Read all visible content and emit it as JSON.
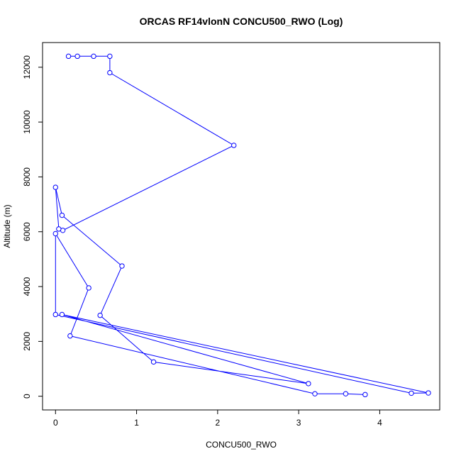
{
  "chart_data": {
    "type": "line",
    "title": "ORCAS RF14vlonN CONCU500_RWO (Log)",
    "xlabel": "CONCU500_RWO",
    "ylabel": "Altitude (m)",
    "xlim": [
      -0.16,
      4.74
    ],
    "ylim": [
      -500,
      12900
    ],
    "x_ticks": [
      0,
      1,
      2,
      3,
      4
    ],
    "y_ticks": [
      0,
      2000,
      4000,
      6000,
      8000,
      10000,
      12000
    ],
    "grid": false,
    "legend": "none",
    "markers": "open-circle",
    "color": "#0000ff",
    "series": [
      {
        "points": [
          [
            0.16,
            12400
          ],
          [
            0.27,
            12400
          ],
          [
            0.47,
            12400
          ],
          [
            0.67,
            12400
          ],
          [
            0.67,
            11800
          ],
          [
            2.2,
            9150
          ],
          [
            0.09,
            6050
          ],
          [
            0.04,
            6100
          ],
          [
            0.0,
            7620
          ],
          [
            0.08,
            6600
          ],
          [
            0.82,
            4750
          ],
          [
            0.55,
            2950
          ],
          [
            1.21,
            1250
          ],
          [
            3.12,
            460
          ],
          [
            0.08,
            2980
          ],
          [
            4.6,
            120
          ],
          [
            4.39,
            110
          ],
          [
            0.0,
            2980
          ],
          [
            0.0,
            5930
          ],
          [
            0.41,
            3950
          ],
          [
            0.18,
            2200
          ],
          [
            3.2,
            90
          ],
          [
            3.58,
            90
          ],
          [
            3.82,
            60
          ]
        ]
      }
    ]
  }
}
